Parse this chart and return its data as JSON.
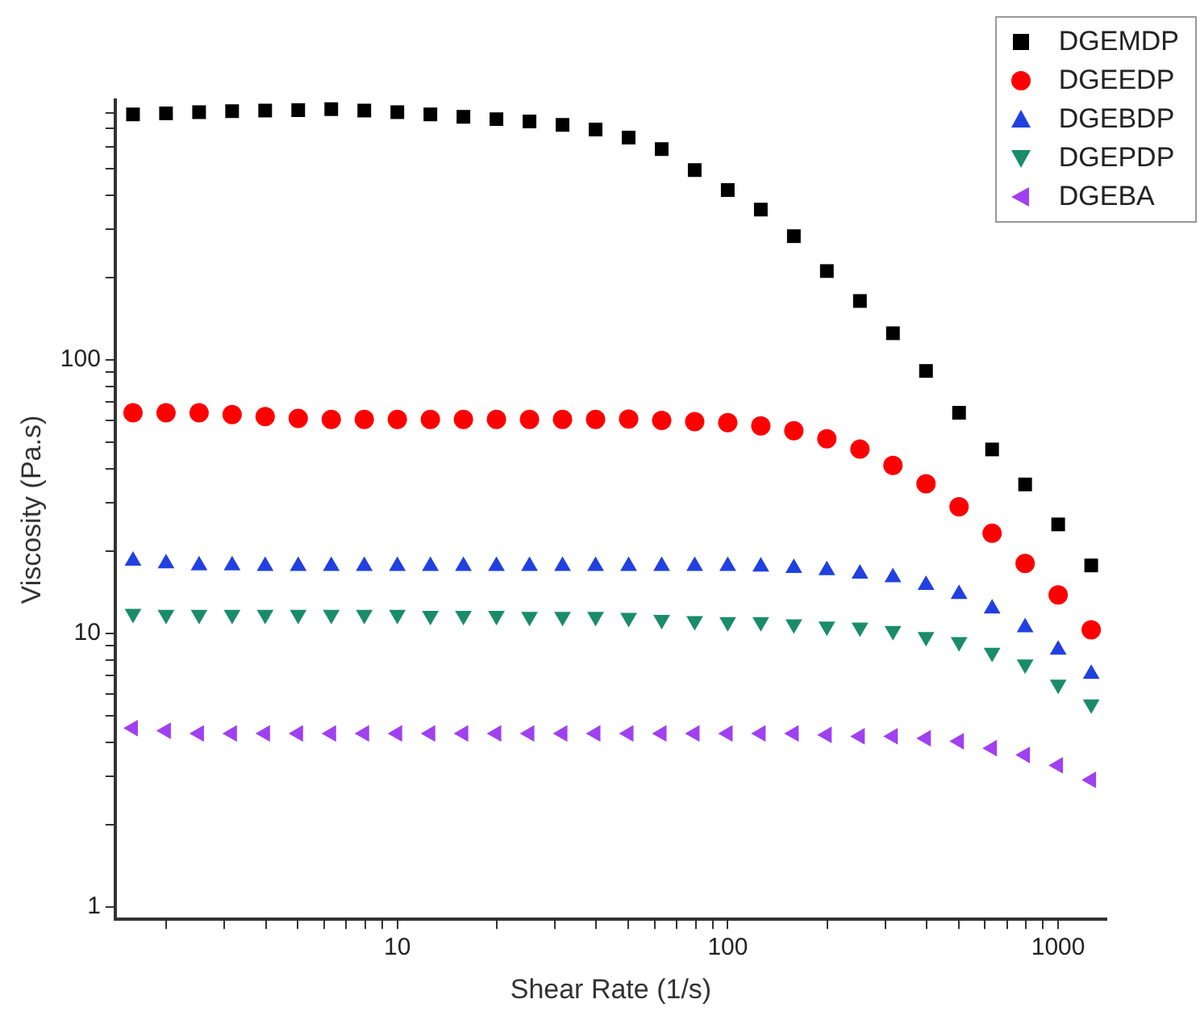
{
  "chart_data": {
    "type": "scatter",
    "xlabel": "Shear Rate (1/s)",
    "ylabel": "Viscosity (Pa.s)",
    "log": "xy",
    "grid": false,
    "legend": "top right",
    "x": [
      1.585,
      1.995,
      2.512,
      3.162,
      3.981,
      5.012,
      6.31,
      7.943,
      10,
      12.59,
      15.85,
      19.95,
      25.12,
      31.62,
      39.81,
      50.12,
      63.1,
      79.43,
      100,
      125.9,
      158.5,
      199.5,
      251.2,
      316.2,
      398.1,
      501.2,
      631,
      794.3,
      1000,
      1259
    ],
    "xlim": [
      1.4,
      1400
    ],
    "ylim": [
      0.9,
      890
    ],
    "xticks": [
      {
        "value": 2,
        "label": null
      },
      {
        "value": 3,
        "label": null
      },
      {
        "value": 4,
        "label": null
      },
      {
        "value": 5,
        "label": null
      },
      {
        "value": 6,
        "label": null
      },
      {
        "value": 7,
        "label": null
      },
      {
        "value": 8,
        "label": null
      },
      {
        "value": 9,
        "label": null
      },
      10,
      {
        "value": 20,
        "label": null
      },
      {
        "value": 30,
        "label": null
      },
      {
        "value": 40,
        "label": null
      },
      {
        "value": 50,
        "label": null
      },
      {
        "value": 60,
        "label": null
      },
      {
        "value": 70,
        "label": null
      },
      {
        "value": 80,
        "label": null
      },
      {
        "value": 90,
        "label": null
      },
      100,
      {
        "value": 200,
        "label": null
      },
      {
        "value": 300,
        "label": null
      },
      {
        "value": 400,
        "label": null
      },
      {
        "value": 500,
        "label": null
      },
      {
        "value": 600,
        "label": null
      },
      {
        "value": 700,
        "label": null
      },
      {
        "value": 800,
        "label": null
      },
      {
        "value": 900,
        "label": null
      },
      1000
    ],
    "yticks": [
      1,
      {
        "value": 2,
        "label": null
      },
      {
        "value": 3,
        "label": null
      },
      {
        "value": 4,
        "label": null
      },
      {
        "value": 5,
        "label": null
      },
      {
        "value": 6,
        "label": null
      },
      {
        "value": 7,
        "label": null
      },
      {
        "value": 8,
        "label": null
      },
      {
        "value": 9,
        "label": null
      },
      10,
      {
        "value": 20,
        "label": null
      },
      {
        "value": 30,
        "label": null
      },
      {
        "value": 40,
        "label": null
      },
      {
        "value": 50,
        "label": null
      },
      {
        "value": 60,
        "label": null
      },
      {
        "value": 70,
        "label": null
      },
      {
        "value": 80,
        "label": null
      },
      {
        "value": 90,
        "label": null
      },
      100,
      {
        "value": 200,
        "label": null
      },
      {
        "value": 300,
        "label": null
      },
      {
        "value": 400,
        "label": null
      },
      {
        "value": 500,
        "label": null
      },
      {
        "value": 600,
        "label": null
      },
      {
        "value": 700,
        "label": null
      },
      {
        "value": 800,
        "label": null
      }
    ],
    "series": [
      {
        "name": "DGEMDP",
        "color": "#000000",
        "marker": "square",
        "values": [
          789,
          796,
          804,
          811,
          815,
          818,
          824,
          815,
          804,
          789,
          773,
          758,
          743,
          722,
          695,
          649,
          589,
          494,
          417,
          354,
          283,
          211,
          164,
          125,
          91,
          64,
          47,
          35,
          25,
          17.7
        ]
      },
      {
        "name": "DGEEDP",
        "color": "#ff0000",
        "marker": "circle",
        "values": [
          64,
          64,
          64,
          63,
          62,
          61,
          60.5,
          60.5,
          60.5,
          60.5,
          60.5,
          60.5,
          60.5,
          60.5,
          60.5,
          60.7,
          60,
          59.4,
          58.9,
          57.3,
          55,
          51.4,
          47.1,
          41.1,
          35.2,
          29,
          23.2,
          18,
          13.8,
          10.3
        ]
      },
      {
        "name": "DGEBDP",
        "color": "#2040e0",
        "marker": "triangle",
        "values": [
          18.4,
          18,
          17.7,
          17.7,
          17.6,
          17.6,
          17.6,
          17.6,
          17.6,
          17.6,
          17.6,
          17.6,
          17.6,
          17.6,
          17.6,
          17.6,
          17.6,
          17.6,
          17.6,
          17.5,
          17.3,
          17,
          16.5,
          16,
          15,
          13.9,
          12.3,
          10.5,
          8.7,
          7.1
        ]
      },
      {
        "name": "DGEPDP",
        "color": "#1a8c6a",
        "marker": "triangle-down",
        "values": [
          11.8,
          11.7,
          11.7,
          11.7,
          11.7,
          11.7,
          11.7,
          11.7,
          11.7,
          11.6,
          11.6,
          11.6,
          11.5,
          11.5,
          11.5,
          11.4,
          11.2,
          11.1,
          11,
          11,
          10.8,
          10.6,
          10.5,
          10.2,
          9.7,
          9.3,
          8.5,
          7.7,
          6.5,
          5.5
        ]
      },
      {
        "name": "DGEBA",
        "color": "#a040f0",
        "marker": "triangle-left",
        "values": [
          4.5,
          4.4,
          4.3,
          4.3,
          4.3,
          4.3,
          4.3,
          4.3,
          4.3,
          4.3,
          4.3,
          4.3,
          4.3,
          4.3,
          4.3,
          4.3,
          4.3,
          4.3,
          4.3,
          4.3,
          4.3,
          4.25,
          4.2,
          4.2,
          4.13,
          4.03,
          3.8,
          3.59,
          3.29,
          2.91
        ]
      }
    ]
  }
}
